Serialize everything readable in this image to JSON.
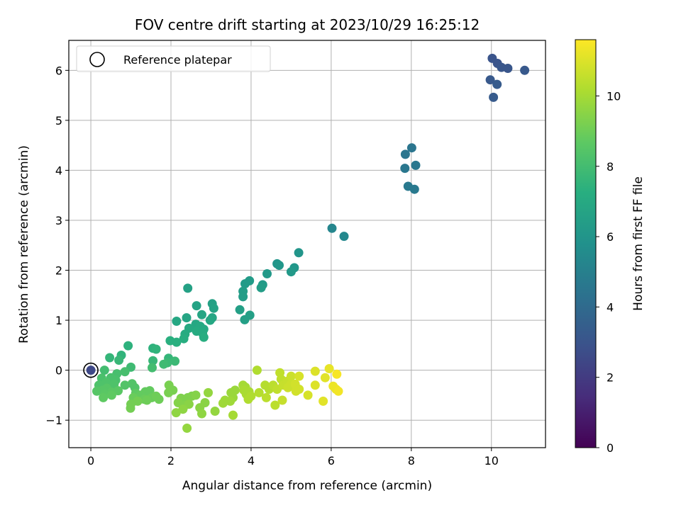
{
  "chart_data": {
    "type": "scatter",
    "title": "FOV centre drift starting at 2023/10/29 16:25:12",
    "xlabel": "Angular distance from reference (arcmin)",
    "ylabel": "Rotation from reference (arcmin)",
    "xlim": [
      -0.55,
      11.35
    ],
    "ylim": [
      -1.55,
      6.6
    ],
    "x_ticks": [
      0,
      2,
      4,
      6,
      8,
      10
    ],
    "y_ticks": [
      -1,
      0,
      1,
      2,
      3,
      4,
      5,
      6
    ],
    "x_tick_labels": [
      "0",
      "2",
      "4",
      "6",
      "8",
      "10"
    ],
    "y_tick_labels": [
      "−1",
      "0",
      "1",
      "2",
      "3",
      "4",
      "5",
      "6"
    ],
    "grid": true,
    "legend": {
      "position": "upper-left",
      "entries": [
        "Reference platepar"
      ]
    },
    "reference_point": {
      "x": 0,
      "y": 0,
      "label": "Reference platepar"
    },
    "colorbar": {
      "label": "Hours from first FF file",
      "colormap": "viridis",
      "range": [
        0,
        11.6
      ],
      "ticks": [
        0,
        2,
        4,
        6,
        8,
        10
      ],
      "tick_labels": [
        "0",
        "2",
        "4",
        "6",
        "8",
        "10"
      ]
    },
    "series": [
      {
        "points": [
          {
            "x": 0.0,
            "y": 0.0,
            "c": 2.5
          },
          {
            "x": 10.02,
            "y": 6.24,
            "c": 3.0
          },
          {
            "x": 10.15,
            "y": 6.14,
            "c": 3.0
          },
          {
            "x": 10.25,
            "y": 6.06,
            "c": 3.1
          },
          {
            "x": 10.41,
            "y": 6.04,
            "c": 3.1
          },
          {
            "x": 10.83,
            "y": 6.0,
            "c": 3.2
          },
          {
            "x": 9.97,
            "y": 5.81,
            "c": 3.2
          },
          {
            "x": 10.14,
            "y": 5.72,
            "c": 3.3
          },
          {
            "x": 10.05,
            "y": 5.46,
            "c": 3.3
          },
          {
            "x": 8.01,
            "y": 4.45,
            "c": 4.5
          },
          {
            "x": 7.85,
            "y": 4.32,
            "c": 4.5
          },
          {
            "x": 8.11,
            "y": 4.1,
            "c": 4.6
          },
          {
            "x": 7.84,
            "y": 4.04,
            "c": 4.6
          },
          {
            "x": 7.92,
            "y": 3.68,
            "c": 4.7
          },
          {
            "x": 8.08,
            "y": 3.62,
            "c": 4.7
          },
          {
            "x": 6.02,
            "y": 2.84,
            "c": 5.3
          },
          {
            "x": 6.32,
            "y": 2.68,
            "c": 5.4
          },
          {
            "x": 5.19,
            "y": 2.35,
            "c": 6.0
          },
          {
            "x": 4.65,
            "y": 2.13,
            "c": 6.0
          },
          {
            "x": 4.7,
            "y": 2.1,
            "c": 6.1
          },
          {
            "x": 5.08,
            "y": 2.05,
            "c": 6.1
          },
          {
            "x": 5.0,
            "y": 1.97,
            "c": 6.2
          },
          {
            "x": 4.4,
            "y": 1.93,
            "c": 6.2
          },
          {
            "x": 3.96,
            "y": 1.79,
            "c": 6.3
          },
          {
            "x": 3.85,
            "y": 1.73,
            "c": 6.3
          },
          {
            "x": 4.29,
            "y": 1.71,
            "c": 6.3
          },
          {
            "x": 4.25,
            "y": 1.65,
            "c": 6.4
          },
          {
            "x": 3.8,
            "y": 1.58,
            "c": 6.4
          },
          {
            "x": 3.8,
            "y": 1.47,
            "c": 6.4
          },
          {
            "x": 3.72,
            "y": 1.21,
            "c": 6.5
          },
          {
            "x": 3.97,
            "y": 1.1,
            "c": 6.5
          },
          {
            "x": 3.84,
            "y": 1.01,
            "c": 6.5
          },
          {
            "x": 2.42,
            "y": 1.64,
            "c": 6.6
          },
          {
            "x": 3.03,
            "y": 1.33,
            "c": 6.6
          },
          {
            "x": 2.64,
            "y": 1.29,
            "c": 6.7
          },
          {
            "x": 3.07,
            "y": 1.24,
            "c": 6.7
          },
          {
            "x": 2.77,
            "y": 1.11,
            "c": 6.8
          },
          {
            "x": 2.39,
            "y": 1.05,
            "c": 6.8
          },
          {
            "x": 3.03,
            "y": 1.05,
            "c": 6.8
          },
          {
            "x": 2.98,
            "y": 1.0,
            "c": 6.9
          },
          {
            "x": 2.14,
            "y": 0.98,
            "c": 6.9
          },
          {
            "x": 2.62,
            "y": 0.92,
            "c": 6.9
          },
          {
            "x": 2.73,
            "y": 0.88,
            "c": 7.0
          },
          {
            "x": 2.45,
            "y": 0.84,
            "c": 7.0
          },
          {
            "x": 2.82,
            "y": 0.82,
            "c": 7.0
          },
          {
            "x": 2.64,
            "y": 0.78,
            "c": 7.1
          },
          {
            "x": 2.79,
            "y": 0.74,
            "c": 7.1
          },
          {
            "x": 2.35,
            "y": 0.72,
            "c": 7.1
          },
          {
            "x": 2.82,
            "y": 0.66,
            "c": 7.2
          },
          {
            "x": 2.32,
            "y": 0.63,
            "c": 7.2
          },
          {
            "x": 1.98,
            "y": 0.59,
            "c": 7.3
          },
          {
            "x": 2.14,
            "y": 0.56,
            "c": 7.3
          },
          {
            "x": 0.93,
            "y": 0.49,
            "c": 7.4
          },
          {
            "x": 1.55,
            "y": 0.44,
            "c": 7.4
          },
          {
            "x": 1.63,
            "y": 0.42,
            "c": 7.5
          },
          {
            "x": 0.76,
            "y": 0.3,
            "c": 7.5
          },
          {
            "x": 0.47,
            "y": 0.25,
            "c": 7.6
          },
          {
            "x": 1.94,
            "y": 0.24,
            "c": 7.6
          },
          {
            "x": 0.7,
            "y": 0.2,
            "c": 7.7
          },
          {
            "x": 1.55,
            "y": 0.19,
            "c": 7.7
          },
          {
            "x": 2.1,
            "y": 0.18,
            "c": 7.8
          },
          {
            "x": 1.91,
            "y": 0.15,
            "c": 7.8
          },
          {
            "x": 1.82,
            "y": 0.12,
            "c": 7.9
          },
          {
            "x": 1.0,
            "y": 0.06,
            "c": 7.9
          },
          {
            "x": 1.53,
            "y": 0.05,
            "c": 8.0
          },
          {
            "x": 0.34,
            "y": 0.0,
            "c": 8.0
          },
          {
            "x": 0.85,
            "y": -0.03,
            "c": 8.1
          },
          {
            "x": 0.65,
            "y": -0.07,
            "c": 8.1
          },
          {
            "x": 0.5,
            "y": -0.15,
            "c": 8.2
          },
          {
            "x": 0.27,
            "y": -0.16,
            "c": 8.2
          },
          {
            "x": 0.62,
            "y": -0.2,
            "c": 8.2
          },
          {
            "x": 0.38,
            "y": -0.25,
            "c": 8.3
          },
          {
            "x": 0.58,
            "y": -0.28,
            "c": 8.3
          },
          {
            "x": 0.2,
            "y": -0.3,
            "c": 8.3
          },
          {
            "x": 0.85,
            "y": -0.3,
            "c": 8.4
          },
          {
            "x": 1.03,
            "y": -0.27,
            "c": 8.4
          },
          {
            "x": 1.1,
            "y": -0.35,
            "c": 8.4
          },
          {
            "x": 0.4,
            "y": -0.36,
            "c": 8.5
          },
          {
            "x": 0.3,
            "y": -0.4,
            "c": 8.5
          },
          {
            "x": 0.15,
            "y": -0.42,
            "c": 8.5
          },
          {
            "x": 0.52,
            "y": -0.44,
            "c": 8.6
          },
          {
            "x": 0.68,
            "y": -0.41,
            "c": 8.6
          },
          {
            "x": 0.35,
            "y": -0.48,
            "c": 8.6
          },
          {
            "x": 0.52,
            "y": -0.5,
            "c": 8.7
          },
          {
            "x": 0.31,
            "y": -0.55,
            "c": 8.7
          },
          {
            "x": 1.12,
            "y": -0.46,
            "c": 8.7
          },
          {
            "x": 1.36,
            "y": -0.43,
            "c": 8.8
          },
          {
            "x": 1.47,
            "y": -0.41,
            "c": 8.8
          },
          {
            "x": 1.24,
            "y": -0.5,
            "c": 8.8
          },
          {
            "x": 1.06,
            "y": -0.55,
            "c": 8.9
          },
          {
            "x": 1.33,
            "y": -0.58,
            "c": 8.9
          },
          {
            "x": 1.52,
            "y": -0.55,
            "c": 8.9
          },
          {
            "x": 1.63,
            "y": -0.52,
            "c": 9.0
          },
          {
            "x": 1.4,
            "y": -0.6,
            "c": 9.0
          },
          {
            "x": 1.7,
            "y": -0.58,
            "c": 9.0
          },
          {
            "x": 1.17,
            "y": -0.62,
            "c": 9.1
          },
          {
            "x": 1.0,
            "y": -0.68,
            "c": 9.1
          },
          {
            "x": 0.99,
            "y": -0.76,
            "c": 9.1
          },
          {
            "x": 1.95,
            "y": -0.3,
            "c": 9.2
          },
          {
            "x": 2.05,
            "y": -0.4,
            "c": 9.2
          },
          {
            "x": 1.94,
            "y": -0.45,
            "c": 9.2
          },
          {
            "x": 2.25,
            "y": -0.56,
            "c": 9.3
          },
          {
            "x": 2.42,
            "y": -0.55,
            "c": 9.3
          },
          {
            "x": 2.52,
            "y": -0.52,
            "c": 9.3
          },
          {
            "x": 2.62,
            "y": -0.5,
            "c": 9.4
          },
          {
            "x": 2.18,
            "y": -0.65,
            "c": 9.4
          },
          {
            "x": 2.35,
            "y": -0.7,
            "c": 9.4
          },
          {
            "x": 2.45,
            "y": -0.68,
            "c": 9.5
          },
          {
            "x": 2.85,
            "y": -0.65,
            "c": 9.5
          },
          {
            "x": 2.72,
            "y": -0.75,
            "c": 9.5
          },
          {
            "x": 2.3,
            "y": -0.78,
            "c": 9.6
          },
          {
            "x": 2.13,
            "y": -0.85,
            "c": 9.6
          },
          {
            "x": 2.77,
            "y": -0.87,
            "c": 9.6
          },
          {
            "x": 3.1,
            "y": -0.82,
            "c": 9.7
          },
          {
            "x": 2.4,
            "y": -1.16,
            "c": 9.7
          },
          {
            "x": 2.93,
            "y": -0.45,
            "c": 9.7
          },
          {
            "x": 3.5,
            "y": -0.45,
            "c": 9.8
          },
          {
            "x": 3.6,
            "y": -0.4,
            "c": 9.8
          },
          {
            "x": 3.55,
            "y": -0.55,
            "c": 9.8
          },
          {
            "x": 3.35,
            "y": -0.6,
            "c": 9.9
          },
          {
            "x": 3.48,
            "y": -0.62,
            "c": 9.9
          },
          {
            "x": 3.3,
            "y": -0.66,
            "c": 9.9
          },
          {
            "x": 3.55,
            "y": -0.9,
            "c": 10.0
          },
          {
            "x": 3.8,
            "y": -0.3,
            "c": 10.0
          },
          {
            "x": 3.86,
            "y": -0.34,
            "c": 10.0
          },
          {
            "x": 3.82,
            "y": -0.4,
            "c": 10.1
          },
          {
            "x": 3.95,
            "y": -0.43,
            "c": 10.1
          },
          {
            "x": 3.88,
            "y": -0.48,
            "c": 10.1
          },
          {
            "x": 4.0,
            "y": -0.52,
            "c": 10.2
          },
          {
            "x": 3.93,
            "y": -0.58,
            "c": 10.2
          },
          {
            "x": 4.15,
            "y": 0.0,
            "c": 10.2
          },
          {
            "x": 4.2,
            "y": -0.45,
            "c": 10.3
          },
          {
            "x": 4.35,
            "y": -0.3,
            "c": 10.3
          },
          {
            "x": 4.45,
            "y": -0.38,
            "c": 10.3
          },
          {
            "x": 4.38,
            "y": -0.55,
            "c": 10.4
          },
          {
            "x": 4.55,
            "y": -0.3,
            "c": 10.4
          },
          {
            "x": 4.6,
            "y": -0.7,
            "c": 10.4
          },
          {
            "x": 4.65,
            "y": -0.38,
            "c": 10.5
          },
          {
            "x": 4.72,
            "y": -0.05,
            "c": 10.5
          },
          {
            "x": 4.75,
            "y": -0.18,
            "c": 10.5
          },
          {
            "x": 4.8,
            "y": -0.3,
            "c": 10.6
          },
          {
            "x": 4.78,
            "y": -0.6,
            "c": 10.6
          },
          {
            "x": 4.9,
            "y": -0.22,
            "c": 10.6
          },
          {
            "x": 4.92,
            "y": -0.35,
            "c": 10.7
          },
          {
            "x": 5.0,
            "y": -0.12,
            "c": 10.7
          },
          {
            "x": 5.0,
            "y": -0.28,
            "c": 10.7
          },
          {
            "x": 5.1,
            "y": -0.28,
            "c": 10.8
          },
          {
            "x": 5.12,
            "y": -0.42,
            "c": 10.8
          },
          {
            "x": 5.2,
            "y": -0.38,
            "c": 10.8
          },
          {
            "x": 5.2,
            "y": -0.12,
            "c": 10.9
          },
          {
            "x": 5.42,
            "y": -0.5,
            "c": 10.9
          },
          {
            "x": 5.6,
            "y": -0.3,
            "c": 11.0
          },
          {
            "x": 5.6,
            "y": -0.02,
            "c": 11.0
          },
          {
            "x": 5.8,
            "y": -0.62,
            "c": 11.1
          },
          {
            "x": 5.85,
            "y": -0.15,
            "c": 11.1
          },
          {
            "x": 5.95,
            "y": 0.03,
            "c": 11.2
          },
          {
            "x": 6.05,
            "y": -0.32,
            "c": 11.3
          },
          {
            "x": 6.12,
            "y": -0.38,
            "c": 11.3
          },
          {
            "x": 6.18,
            "y": -0.42,
            "c": 11.4
          },
          {
            "x": 6.14,
            "y": -0.08,
            "c": 11.5
          }
        ]
      }
    ]
  }
}
